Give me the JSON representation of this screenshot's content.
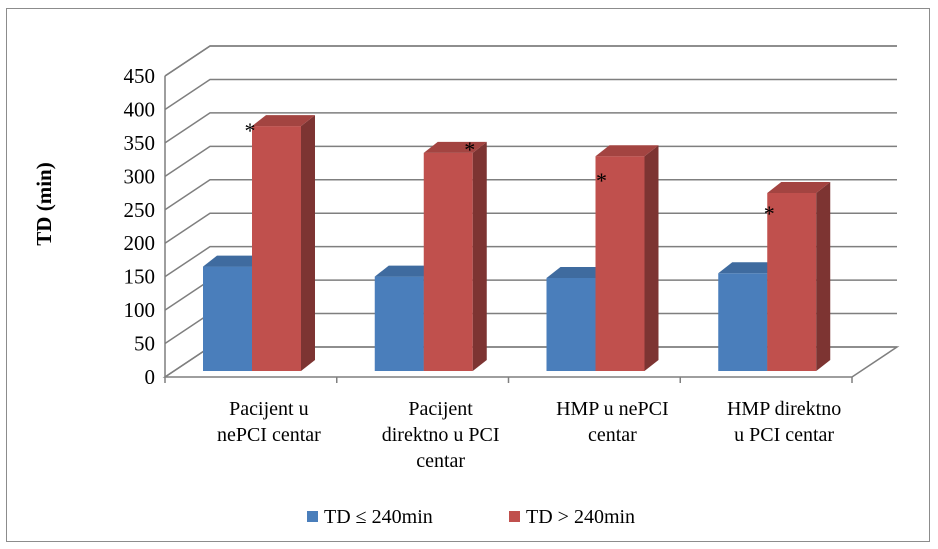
{
  "chart_data": {
    "type": "bar",
    "title": "",
    "xlabel": "",
    "ylabel": "TD (min)",
    "ylim": [
      0,
      450
    ],
    "yticks": [
      "0",
      "50",
      "100",
      "150",
      "200",
      "250",
      "300",
      "350",
      "400",
      "450"
    ],
    "grid": true,
    "legend_position": "bottom",
    "categories": [
      [
        "Pacijent u",
        "nePCI centar"
      ],
      [
        "Pacijent",
        "direktno u PCI",
        "centar"
      ],
      [
        "HMP u nePCI",
        "centar"
      ],
      [
        "HMP direktno",
        "u PCI centar"
      ]
    ],
    "series": [
      {
        "name": "TD ≤ 240min",
        "color": "#4a7ebb",
        "values": [
          195,
          180,
          178,
          185
        ]
      },
      {
        "name": "TD > 240min",
        "color": "#c0504d",
        "values": [
          405,
          365,
          360,
          305
        ]
      }
    ],
    "annotations": [
      "*",
      "*",
      "*",
      "*"
    ]
  }
}
